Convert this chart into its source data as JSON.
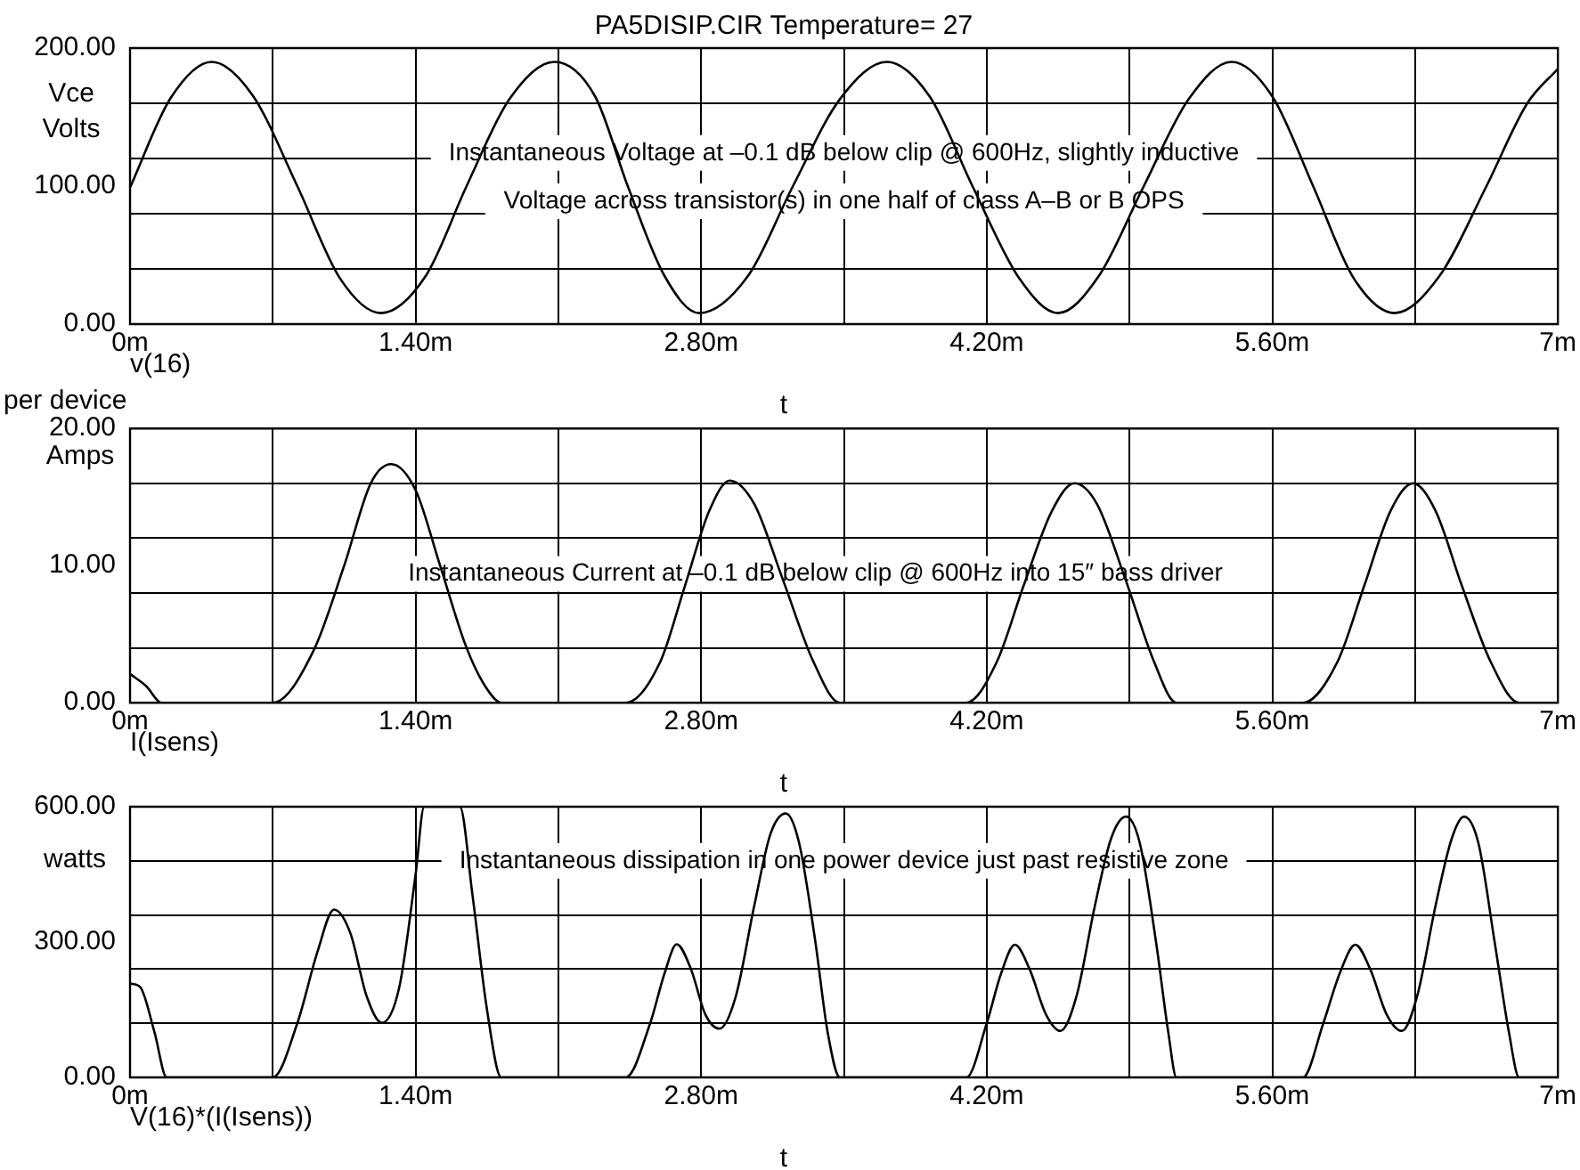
{
  "chart_data": [
    {
      "type": "line",
      "title": "PA5DISIP.CIR Temperature= 27",
      "xlabel": "t",
      "ylabel": "Vce\nVolts",
      "legend": "bottom left",
      "grid": true,
      "marker": "none",
      "annotations": [
        "Instantaneous Voltage at –0.1 dB below clip @ 600Hz, slightly inductive",
        "Voltage across transistor(s) in one half of class A–B or B OPS"
      ],
      "xlim": [
        0,
        7
      ],
      "xticks": [
        {
          "value": 0,
          "label": "0m"
        },
        {
          "value": 0.7,
          "label": null
        },
        {
          "value": 1.4,
          "label": "1.40m"
        },
        {
          "value": 2.1,
          "label": null
        },
        {
          "value": 2.8,
          "label": "2.80m"
        },
        {
          "value": 3.5,
          "label": null
        },
        {
          "value": 4.2,
          "label": "4.20m"
        },
        {
          "value": 4.9,
          "label": null
        },
        {
          "value": 5.6,
          "label": "5.60m"
        },
        {
          "value": 6.3,
          "label": null
        },
        {
          "value": 7,
          "label": "7m"
        }
      ],
      "ylim": [
        0,
        200
      ],
      "yticks": [
        {
          "value": 0,
          "label": "0.00"
        },
        {
          "value": 40,
          "label": null
        },
        {
          "value": 80,
          "label": null
        },
        {
          "value": 100,
          "label": "100.00"
        },
        {
          "value": 120,
          "label": null
        },
        {
          "value": 160,
          "label": null
        },
        {
          "value": 200,
          "label": "200.00"
        }
      ],
      "x": [
        0,
        0.2,
        0.4,
        0.6,
        0.82,
        1.03,
        1.23,
        1.45,
        1.65,
        1.86,
        2.08,
        2.28,
        2.44,
        2.62,
        2.79,
        3.03,
        3.25,
        3.48,
        3.71,
        3.92,
        4.13,
        4.36,
        4.55,
        4.75,
        4.97,
        5.19,
        5.4,
        5.6,
        5.8,
        6.0,
        6.2,
        6.42,
        6.65,
        6.85,
        7.0
      ],
      "series": [
        {
          "name": "v(16)",
          "color": "#000000",
          "values": [
            99,
            164,
            190,
            166,
            100,
            33,
            8,
            35,
            100,
            163,
            190,
            165,
            100,
            35,
            8,
            35,
            100,
            163,
            190,
            165,
            100,
            33,
            8,
            35,
            100,
            163,
            190,
            165,
            100,
            33,
            8,
            35,
            100,
            160,
            185
          ]
        }
      ]
    },
    {
      "type": "line",
      "xlabel": "t",
      "ylabel": "per device\nAmps",
      "legend": "bottom left",
      "grid": true,
      "marker": "none",
      "annotations": [
        "Instantaneous Current at –0.1 dB below clip @ 600Hz into 15″ bass driver"
      ],
      "xlim": [
        0,
        7
      ],
      "xticks": [
        {
          "value": 0,
          "label": "0m"
        },
        {
          "value": 0.7,
          "label": null
        },
        {
          "value": 1.4,
          "label": "1.40m"
        },
        {
          "value": 2.1,
          "label": null
        },
        {
          "value": 2.8,
          "label": "2.80m"
        },
        {
          "value": 3.5,
          "label": null
        },
        {
          "value": 4.2,
          "label": "4.20m"
        },
        {
          "value": 4.9,
          "label": null
        },
        {
          "value": 5.6,
          "label": "5.60m"
        },
        {
          "value": 6.3,
          "label": null
        },
        {
          "value": 7,
          "label": "7m"
        }
      ],
      "ylim": [
        0,
        20
      ],
      "yticks": [
        {
          "value": 0,
          "label": "0.00"
        },
        {
          "value": 4,
          "label": null
        },
        {
          "value": 8,
          "label": null
        },
        {
          "value": 10,
          "label": "10.00"
        },
        {
          "value": 12,
          "label": null
        },
        {
          "value": 16,
          "label": null
        },
        {
          "value": 20,
          "label": "20.00"
        }
      ],
      "x": [
        0,
        0.08,
        0.155,
        0.7,
        0.9,
        1.05,
        1.18,
        1.28,
        1.4,
        1.52,
        1.65,
        1.75,
        1.82,
        2.43,
        2.6,
        2.72,
        2.84,
        2.94,
        3.06,
        3.2,
        3.35,
        3.48,
        4.1,
        4.25,
        4.38,
        4.52,
        4.63,
        4.74,
        4.88,
        5.02,
        5.13,
        5.75,
        5.92,
        6.05,
        6.18,
        6.29,
        6.4,
        6.53,
        6.67,
        6.81,
        7.0
      ],
      "series": [
        {
          "name": "I(Isens)",
          "color": "#000000",
          "values": [
            2.1,
            1.2,
            0,
            0,
            3.8,
            10,
            16,
            17.4,
            15.5,
            10,
            4,
            1,
            0,
            0,
            3,
            8.5,
            14,
            16.2,
            14.5,
            9,
            3,
            0,
            0,
            3,
            8.5,
            14,
            16,
            14.5,
            9,
            3,
            0,
            0,
            3,
            8.5,
            14,
            16,
            14,
            8.5,
            3,
            0,
            0
          ]
        }
      ]
    },
    {
      "type": "line",
      "xlabel": "t",
      "ylabel": "watts",
      "legend": "bottom left",
      "grid": true,
      "marker": "none",
      "annotations": [
        "Instantaneous dissipation in one power device just past resistive zone"
      ],
      "xlim": [
        0,
        7
      ],
      "xticks": [
        {
          "value": 0,
          "label": "0m"
        },
        {
          "value": 0.7,
          "label": null
        },
        {
          "value": 1.4,
          "label": "1.40m"
        },
        {
          "value": 2.1,
          "label": null
        },
        {
          "value": 2.8,
          "label": "2.80m"
        },
        {
          "value": 3.5,
          "label": null
        },
        {
          "value": 4.2,
          "label": "4.20m"
        },
        {
          "value": 4.9,
          "label": null
        },
        {
          "value": 5.6,
          "label": "5.60m"
        },
        {
          "value": 6.3,
          "label": null
        },
        {
          "value": 7,
          "label": "7m"
        }
      ],
      "ylim": [
        0,
        600
      ],
      "yticks": [
        {
          "value": 0,
          "label": "0.00"
        },
        {
          "value": 120,
          "label": null
        },
        {
          "value": 240,
          "label": null
        },
        {
          "value": 300,
          "label": "300.00"
        },
        {
          "value": 360,
          "label": null
        },
        {
          "value": 480,
          "label": null
        },
        {
          "value": 600,
          "label": "600.00"
        }
      ],
      "x": [
        0,
        0.05,
        0.12,
        0.18,
        0.7,
        0.82,
        0.92,
        1.0,
        1.08,
        1.16,
        1.234,
        1.32,
        1.4,
        1.442,
        1.617,
        1.68,
        1.75,
        1.82,
        2.43,
        2.55,
        2.62,
        2.68,
        2.75,
        2.82,
        2.89,
        2.97,
        3.06,
        3.14,
        3.215,
        3.28,
        3.36,
        3.42,
        3.48,
        4.1,
        4.2,
        4.27,
        4.338,
        4.41,
        4.49,
        4.561,
        4.64,
        4.73,
        4.81,
        4.883,
        4.95,
        5.03,
        5.09,
        5.13,
        5.75,
        5.85,
        5.93,
        6.007,
        6.08,
        6.16,
        6.235,
        6.31,
        6.4,
        6.48,
        6.54,
        6.61,
        6.69,
        6.76,
        6.81,
        7.0
      ],
      "series": [
        {
          "name": "V(16)*(I(Isens))",
          "color": "#000000",
          "values": [
            208,
            200,
            100,
            0,
            0,
            120,
            280,
            372,
            320,
            180,
            121,
            200,
            450,
            600,
            600,
            400,
            150,
            0,
            0,
            120,
            230,
            295,
            240,
            140,
            108,
            180,
            380,
            540,
            585,
            520,
            300,
            100,
            0,
            0,
            120,
            230,
            294,
            240,
            140,
            103,
            180,
            380,
            530,
            578,
            520,
            300,
            100,
            0,
            0,
            120,
            230,
            294,
            240,
            140,
            103,
            180,
            380,
            530,
            578,
            520,
            300,
            100,
            0,
            0
          ]
        }
      ]
    }
  ]
}
